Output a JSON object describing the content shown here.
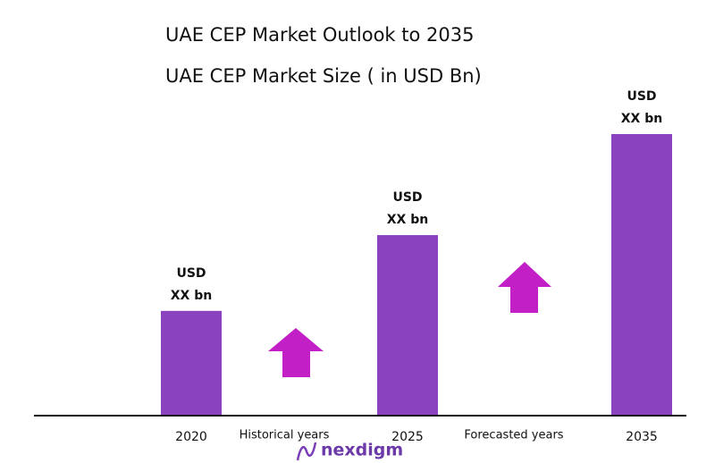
{
  "chart_data": {
    "type": "bar",
    "title": "UAE CEP Market Outlook to 2035",
    "subtitle": "UAE CEP Market Size  ( in USD Bn)",
    "categories": [
      "2020",
      "2025",
      "2035"
    ],
    "values": [
      37,
      64,
      100
    ],
    "value_labels": [
      [
        "USD",
        "XX bn"
      ],
      [
        "USD",
        "XX bn"
      ],
      [
        "USD",
        "XX bn"
      ]
    ],
    "color": "#8a42bf",
    "ylim": [
      0,
      100
    ],
    "annotations": [
      "Historical years",
      "Forecasted years"
    ]
  },
  "logo": "nexdigm"
}
